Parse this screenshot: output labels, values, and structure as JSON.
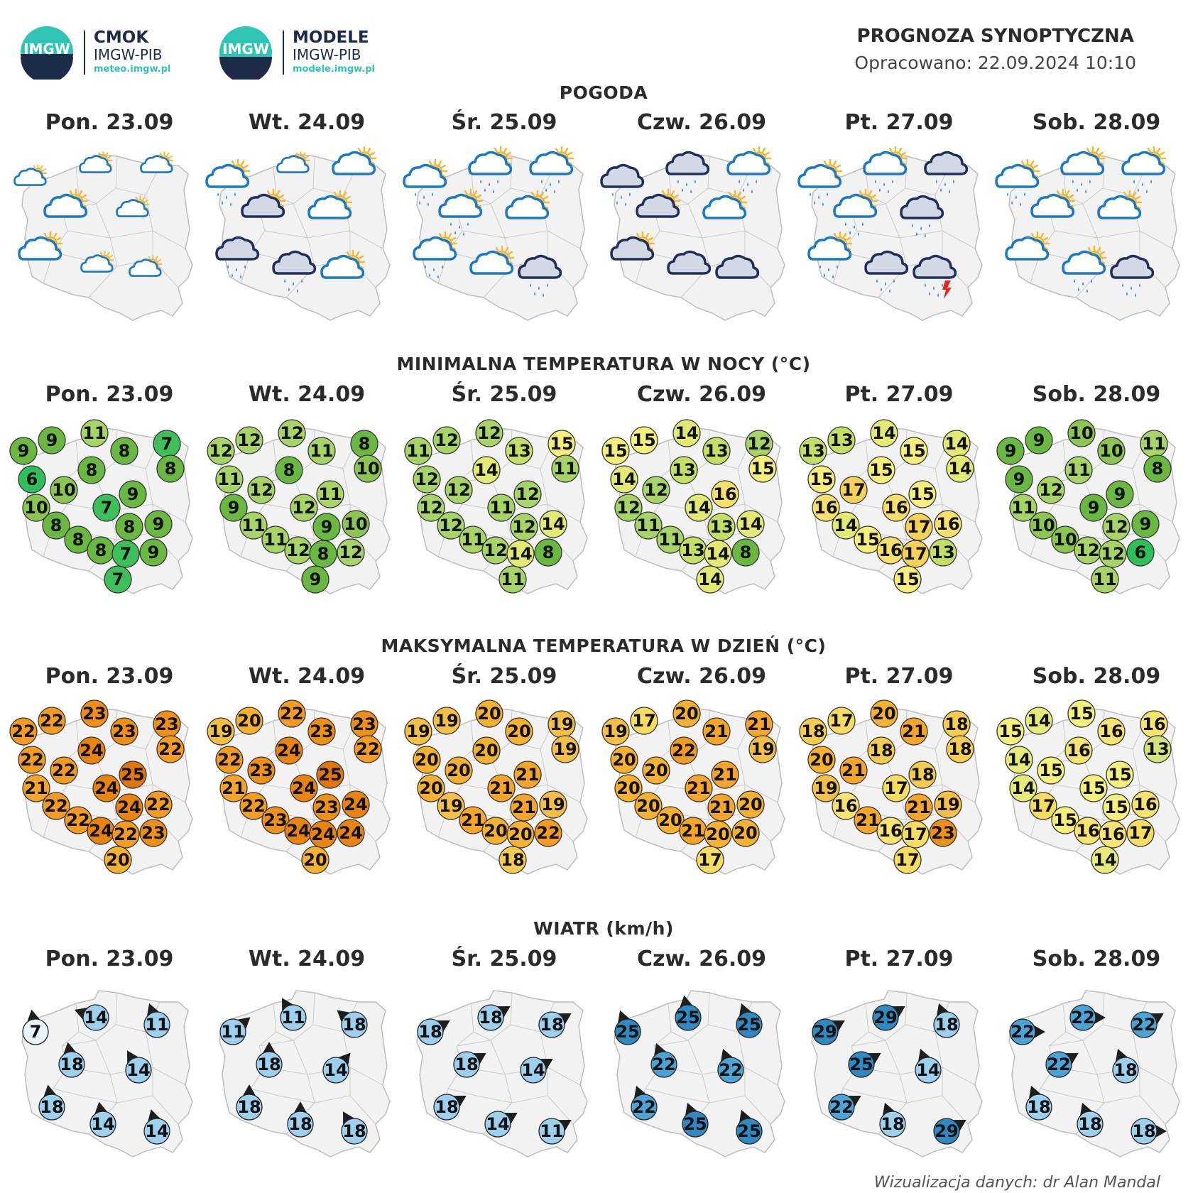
{
  "header": {
    "brand1": {
      "name": "CMOK",
      "org": "IMGW-PIB",
      "url": "meteo.imgw.pl"
    },
    "brand2": {
      "name": "MODELE",
      "org": "IMGW-PIB",
      "url": "modele.imgw.pl"
    },
    "logo_text": "IMGW",
    "title": "PROGNOZA SYNOPTYCZNA",
    "date_line": "Opracowano: 22.09.2024 10:10"
  },
  "days": [
    "Pon. 23.09",
    "Wt. 24.09",
    "Śr. 25.09",
    "Czw. 26.09",
    "Pt. 27.09",
    "Sob. 28.09"
  ],
  "sections": {
    "weather": "POGODA",
    "tmin": "MINIMALNA TEMPERATURA W NOCY (°C)",
    "tmax": "MAKSYMALNA TEMPERATURA W DZIEŃ (°C)",
    "wind": "WIATR (km/h)"
  },
  "weather": [
    [
      "sun-cloud-small",
      "sun-cloud-small",
      "sun-cloud-small",
      "sun-cloud",
      "sun-cloud-small",
      "sun-cloud",
      "sun-cloud-small",
      "sun-cloud-small"
    ],
    [
      "sun-cloud-rain",
      "sun-cloud-small",
      "sun-cloud",
      "dark-cloud-sun",
      "sun-cloud",
      "dark-cloud-rain",
      "dark-cloud-rain",
      "sun-cloud"
    ],
    [
      "sun-cloud-rain",
      "sun-cloud-rain",
      "sun-cloud-rain",
      "sun-cloud-rain",
      "sun-cloud",
      "sun-cloud-rain",
      "sun-cloud",
      "dark-cloud-rain"
    ],
    [
      "dark-cloud-rain",
      "dark-cloud-rain",
      "sun-cloud-rain",
      "dark-cloud-sun",
      "sun-cloud",
      "dark-cloud-sun",
      "dark-cloud",
      "dark-cloud"
    ],
    [
      "sun-cloud-rain",
      "sun-cloud-rain",
      "dark-cloud-rain",
      "sun-cloud-rain",
      "dark-cloud-rain",
      "sun-cloud-rain",
      "dark-cloud-rain",
      "dark-cloud-storm"
    ],
    [
      "sun-cloud-rain",
      "sun-cloud-rain",
      "sun-cloud-rain",
      "sun-cloud",
      "sun-cloud",
      "sun-cloud",
      "sun-cloud-rain",
      "dark-cloud-rain"
    ]
  ],
  "tmin": [
    [
      9,
      9,
      11,
      8,
      7,
      8,
      6,
      8,
      10,
      9,
      10,
      7,
      8,
      8,
      9,
      8,
      8,
      7,
      9,
      7
    ],
    [
      12,
      12,
      12,
      11,
      8,
      10,
      11,
      8,
      12,
      11,
      9,
      12,
      11,
      9,
      10,
      11,
      12,
      8,
      12,
      9
    ],
    [
      11,
      12,
      12,
      13,
      15,
      11,
      12,
      14,
      12,
      12,
      12,
      11,
      12,
      12,
      14,
      11,
      12,
      14,
      8,
      11
    ],
    [
      15,
      15,
      14,
      13,
      12,
      15,
      14,
      13,
      12,
      16,
      12,
      14,
      11,
      13,
      14,
      11,
      13,
      14,
      8,
      14
    ],
    [
      13,
      13,
      14,
      15,
      14,
      14,
      15,
      15,
      17,
      15,
      16,
      16,
      14,
      17,
      16,
      15,
      16,
      17,
      13,
      15
    ],
    [
      9,
      9,
      10,
      10,
      11,
      8,
      9,
      11,
      12,
      9,
      11,
      9,
      10,
      12,
      9,
      10,
      12,
      12,
      6,
      11
    ]
  ],
  "tmax": [
    [
      22,
      22,
      23,
      23,
      23,
      22,
      22,
      24,
      22,
      25,
      21,
      24,
      22,
      24,
      22,
      22,
      24,
      22,
      23,
      20
    ],
    [
      19,
      20,
      22,
      23,
      23,
      22,
      22,
      24,
      23,
      25,
      21,
      24,
      22,
      23,
      24,
      23,
      24,
      24,
      24,
      20
    ],
    [
      19,
      19,
      20,
      20,
      19,
      19,
      20,
      20,
      20,
      21,
      20,
      21,
      19,
      21,
      19,
      21,
      20,
      20,
      22,
      18
    ],
    [
      19,
      17,
      20,
      21,
      21,
      19,
      20,
      22,
      20,
      21,
      20,
      21,
      20,
      21,
      20,
      20,
      21,
      20,
      20,
      17
    ],
    [
      18,
      17,
      20,
      21,
      18,
      18,
      20,
      18,
      21,
      18,
      19,
      17,
      16,
      21,
      19,
      21,
      16,
      17,
      23,
      17
    ],
    [
      15,
      14,
      15,
      16,
      16,
      13,
      14,
      16,
      15,
      15,
      14,
      15,
      17,
      15,
      16,
      15,
      16,
      16,
      17,
      14
    ]
  ],
  "wind": [
    [
      7,
      14,
      11,
      18,
      14,
      18,
      14,
      14
    ],
    [
      11,
      11,
      18,
      18,
      14,
      18,
      18,
      18
    ],
    [
      18,
      18,
      18,
      18,
      14,
      18,
      14,
      11
    ],
    [
      25,
      25,
      25,
      22,
      22,
      22,
      25,
      25
    ],
    [
      29,
      29,
      18,
      25,
      14,
      22,
      18,
      29
    ],
    [
      22,
      22,
      22,
      22,
      18,
      18,
      18,
      18
    ]
  ],
  "footer": "Wizualizacja danych: dr Alan Mandal"
}
